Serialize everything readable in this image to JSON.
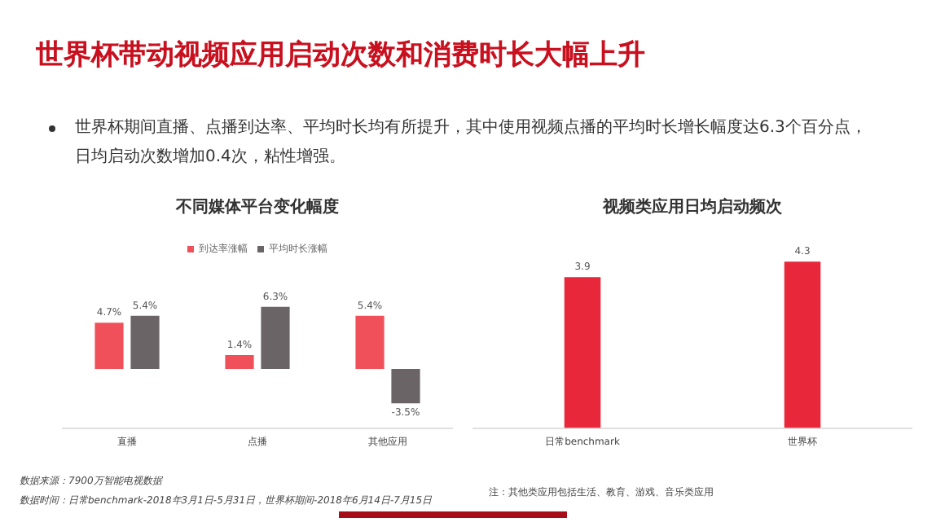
{
  "chart_data": [
    {
      "type": "other",
      "title": "世界杯带动视频应用启动次数和消费时长大幅上升",
      "subtitle": "世界杯期间直播、点播到达率、平均时长均有所提升，其中使用视频点播的平均时长增长幅度达6.3个百分点，日均启动次数增加0.4次，粘性增强。",
      "annotations": [
        "数据来源：7900万智能电视数据",
        "数据时间：日常benchmark-2018年3月1日-5月31日，世界杯期间-2018年6月14日-7月15日"
      ]
    },
    {
      "type": "bar",
      "title": "不同媒体平台变化幅度",
      "categories": [
        "直播",
        "点播",
        "其他应用"
      ],
      "series": [
        {
          "name": "到达率涨幅",
          "color": "#f0505a",
          "values": [
            4.7,
            1.4,
            5.4
          ],
          "value_labels": [
            "4.7%",
            "1.4%",
            "5.4%"
          ]
        },
        {
          "name": "平均时长涨幅",
          "color": "#6b6466",
          "values": [
            5.4,
            6.3,
            -3.5
          ],
          "value_labels": [
            "5.4%",
            "6.3%",
            "-3.5%"
          ]
        }
      ],
      "legend": "top",
      "tick_labels": "x",
      "grid": false
    },
    {
      "type": "bar",
      "title": "视频类应用日均启动频次",
      "categories": [
        "日常benchmark",
        "世界杯"
      ],
      "values": [
        3.9,
        4.3
      ],
      "color": "#e8283a",
      "data_labels": true,
      "tick_labels": "x",
      "grid": false,
      "annotations": [
        "注：其他类应用包括生活、教育、游戏、音乐类应用"
      ]
    }
  ]
}
